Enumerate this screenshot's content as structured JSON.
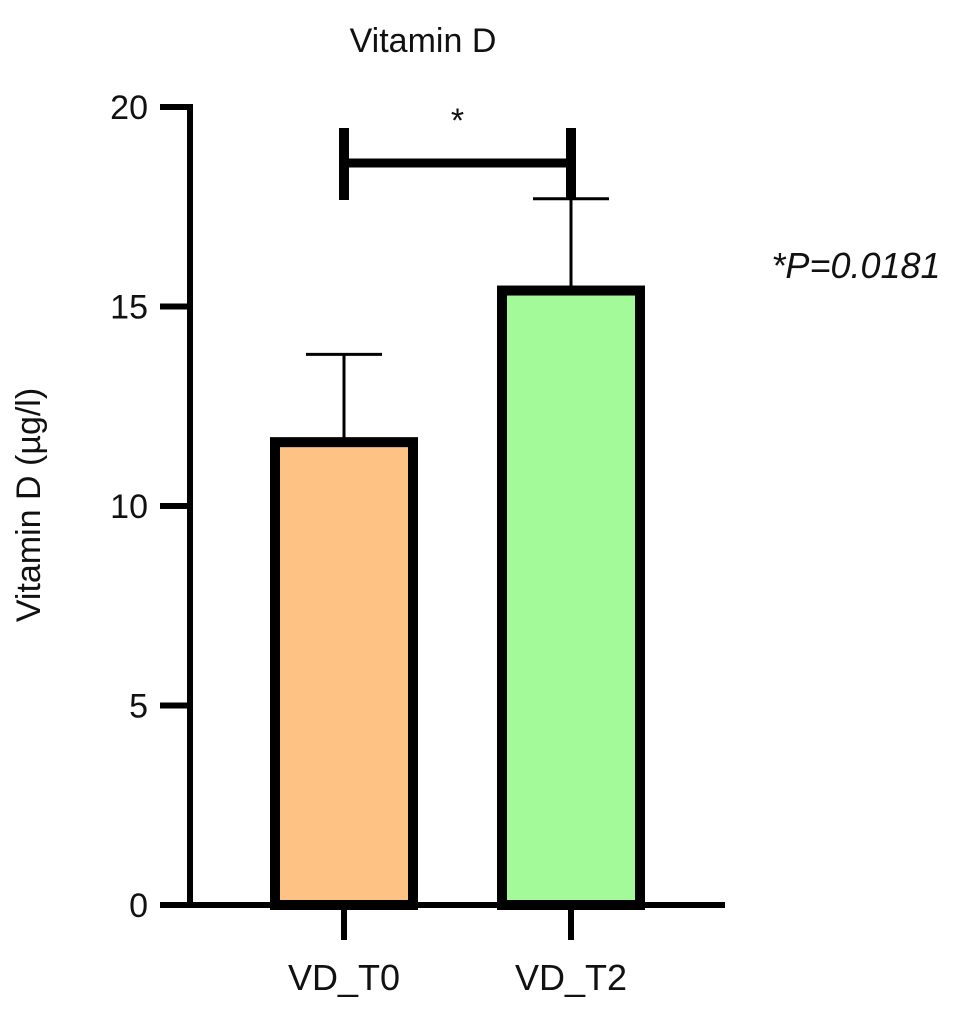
{
  "chart_data": {
    "type": "bar",
    "title": "Vitamin D",
    "ylabel": "Vitamin D (µg/l)",
    "xlabel": "",
    "ylim": [
      0,
      20
    ],
    "yticks": [
      0,
      5,
      10,
      15,
      20
    ],
    "ytick_labels": [
      "0",
      "5",
      "10",
      "15",
      "20"
    ],
    "categories": [
      "VD_T0",
      "VD_T2"
    ],
    "values": [
      11.6,
      15.4
    ],
    "errors": [
      2.2,
      2.3
    ],
    "colors": [
      "#ffc285",
      "#a3fa99"
    ],
    "grid": false,
    "significance": {
      "from": "VD_T0",
      "to": "VD_T2",
      "marker": "*",
      "annotation": "*P=0.0181"
    }
  }
}
